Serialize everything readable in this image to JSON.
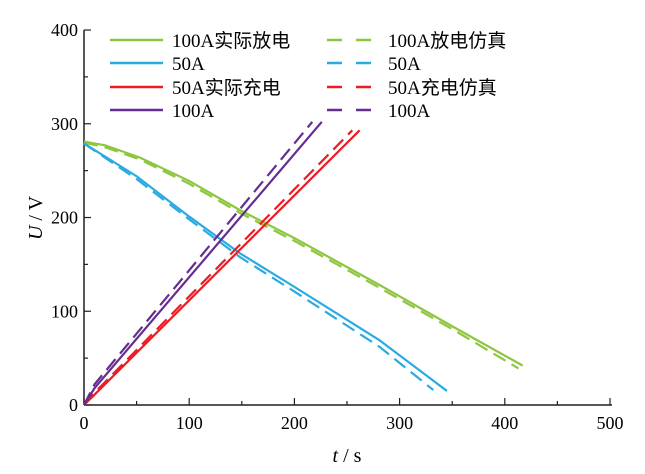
{
  "chart_data": {
    "type": "line",
    "xlabel_var": "t",
    "xlabel_unit": "s",
    "ylabel_var": "U",
    "ylabel_unit": "V",
    "xlim": [
      0,
      500
    ],
    "ylim": [
      0,
      400
    ],
    "xticks": [
      "0",
      "100",
      "200",
      "300",
      "400",
      "500"
    ],
    "yticks": [
      "0",
      "100",
      "200",
      "300",
      "400"
    ],
    "legend_position": "top",
    "series": [
      {
        "name": "100A实际放电",
        "color": "#8dc63f",
        "dash": false,
        "x": [
          0,
          20,
          53,
          100,
          148,
          200,
          281,
          350,
          417
        ],
        "y": [
          281,
          277,
          264,
          239,
          208,
          178,
          128,
          84,
          42
        ]
      },
      {
        "name": "100A放电仿真",
        "color": "#8dc63f",
        "dash": true,
        "x": [
          0,
          20,
          53,
          100,
          148,
          200,
          281,
          350,
          413
        ],
        "y": [
          280,
          275,
          262,
          236,
          205,
          175,
          125,
          81,
          39
        ]
      },
      {
        "name": "50A",
        "color": "#29abe2",
        "dash": false,
        "x": [
          0,
          50,
          100,
          148,
          200,
          281,
          345
        ],
        "y": [
          279,
          244,
          201,
          162,
          126,
          69,
          15
        ]
      },
      {
        "name": "50A",
        "color": "#29abe2",
        "dash": true,
        "x": [
          0,
          50,
          100,
          148,
          200,
          281,
          332
        ],
        "y": [
          279,
          241,
          198,
          158,
          121,
          62,
          16
        ]
      },
      {
        "name": "50A实际充电",
        "color": "#ed1c24",
        "dash": false,
        "x": [
          0,
          10,
          262
        ],
        "y": [
          0,
          11,
          293
        ]
      },
      {
        "name": "50A充电仿真",
        "color": "#ed1c24",
        "dash": true,
        "x": [
          0,
          10,
          255
        ],
        "y": [
          0,
          13,
          293
        ]
      },
      {
        "name": "100A",
        "color": "#662d91",
        "dash": false,
        "x": [
          0,
          10,
          226
        ],
        "y": [
          0,
          18,
          302
        ]
      },
      {
        "name": "100A",
        "color": "#662d91",
        "dash": true,
        "x": [
          0,
          10,
          217
        ],
        "y": [
          0,
          22,
          302
        ]
      }
    ]
  }
}
